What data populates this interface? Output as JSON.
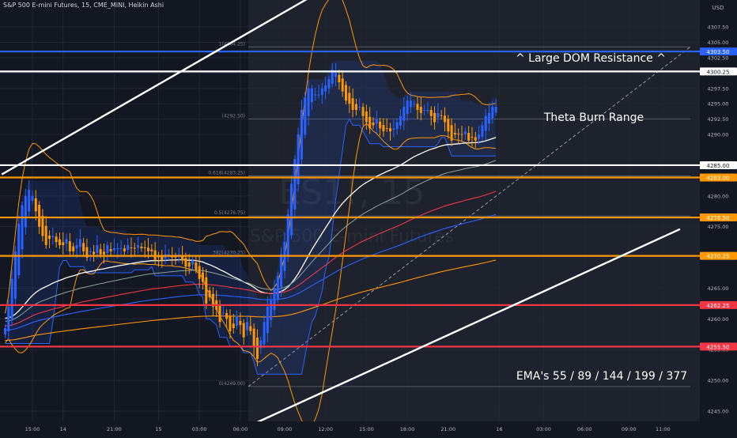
{
  "header": {
    "title": "S&P 500 E-mini Futures, 15, CME_MINI, Heikin Ashi",
    "currency": "USD"
  },
  "watermark": {
    "symbol": "ES1!, 15",
    "name": "S&P 500 E-mini Futures"
  },
  "colors": {
    "background": "#131722",
    "shade": "#1e222d",
    "up": "#2962ff",
    "down": "#ff9800",
    "level_blue": "#2962ff",
    "level_white": "#ffffff",
    "level_orange": "#ff9800",
    "level_red": "#f23645"
  },
  "annotations": {
    "dom_resistance": "^ Large DOM Resistance ^",
    "theta": "Theta Burn Range",
    "emas": "EMA's 55 / 89 / 144 / 199 / 377"
  },
  "chart_data": {
    "type": "candlestick",
    "title": "S&P 500 E-mini Futures, 15, CME_MINI, Heikin Ashi",
    "ylim": [
      4243,
      4310
    ],
    "y_ticks": [
      4245.0,
      4250.0,
      4255.0,
      4260.0,
      4265.0,
      4270.0,
      4275.0,
      4280.0,
      4285.0,
      4290.0,
      4292.5,
      4295.0,
      4297.5,
      4300.0,
      4302.5,
      4305.0,
      4307.5
    ],
    "y_tick_labels": [
      "4245.00",
      "4250.00",
      "4255.00",
      "4260.00",
      "4265.00",
      "4270.00",
      "4275.00",
      "4280.00",
      "4285.00",
      "4290.00",
      "4292.50",
      "4295.00",
      "4297.50",
      "4300.00",
      "4302.50",
      "4305.00",
      "4307.50"
    ],
    "x_ticks": [
      {
        "bar": 8,
        "label": "15:00"
      },
      {
        "bar": 17,
        "label": "14"
      },
      {
        "bar": 32,
        "label": "21:00"
      },
      {
        "bar": 45,
        "label": "15"
      },
      {
        "bar": 57,
        "label": "03:00"
      },
      {
        "bar": 69,
        "label": "06:00"
      },
      {
        "bar": 82,
        "label": "09:00"
      },
      {
        "bar": 94,
        "label": "12:00"
      },
      {
        "bar": 106,
        "label": "15:00"
      },
      {
        "bar": 118,
        "label": "18:00"
      },
      {
        "bar": 130,
        "label": "21:00"
      },
      {
        "bar": 145,
        "label": "16"
      },
      {
        "bar": 158,
        "label": "03:00"
      },
      {
        "bar": 170,
        "label": "06:00"
      },
      {
        "bar": 183,
        "label": "09:00"
      },
      {
        "bar": 193,
        "label": "11:00"
      }
    ],
    "price_levels": [
      {
        "value": 4303.5,
        "label": "4303.50",
        "color": "#2962ff"
      },
      {
        "value": 4300.25,
        "label": "4300.25",
        "color": "#ffffff"
      },
      {
        "value": 4285.0,
        "label": "4285.00",
        "color": "#ffffff"
      },
      {
        "value": 4283.0,
        "label": "4283.00",
        "color": "#ff9800"
      },
      {
        "value": 4276.5,
        "label": "4276.50",
        "color": "#ff9800"
      },
      {
        "value": 4270.25,
        "label": "4270.25",
        "color": "#ff9800"
      },
      {
        "value": 4262.25,
        "label": "4262.25",
        "color": "#f23645"
      },
      {
        "value": 4255.5,
        "label": "4255.50",
        "color": "#f23645"
      }
    ],
    "fib_levels": [
      {
        "value": 4304.25,
        "label": "1(4304.25)"
      },
      {
        "value": 4292.5,
        "label": "(4292.50)"
      },
      {
        "value": 4283.25,
        "label": "0.618(4283.25)"
      },
      {
        "value": 4276.75,
        "label": "0.5(4276.75)"
      },
      {
        "value": 4270.25,
        "label": "382(4270.25)"
      },
      {
        "value": 4249.0,
        "label": "0(4249.00)"
      }
    ],
    "trend_lines": [
      {
        "from": [
          -1,
          4283.5
        ],
        "to": [
          145,
          4330
        ]
      },
      {
        "from": [
          74,
          4243.2
        ],
        "to": [
          198,
          4274.6
        ]
      }
    ],
    "closes": [
      4258.5,
      4262.0,
      4266.5,
      4271.0,
      4275.5,
      4278.5,
      4280.0,
      4281.0,
      4280.0,
      4277.5,
      4275.0,
      4273.5,
      4272.0,
      4273.0,
      4273.5,
      4272.5,
      4272.0,
      4272.0,
      4273.0,
      4271.0,
      4271.0,
      4272.0,
      4273.0,
      4271.0,
      4270.0,
      4271.0,
      4270.5,
      4272.0,
      4270.5,
      4270.5,
      4272.0,
      4271.0,
      4271.5,
      4271.5,
      4271.5,
      4271.0,
      4272.0,
      4271.5,
      4271.5,
      4272.0,
      4271.5,
      4271.5,
      4271.0,
      4271.0,
      4269.5,
      4270.0,
      4269.5,
      4270.5,
      4270.5,
      4270.0,
      4270.0,
      4270.5,
      4269.5,
      4268.5,
      4268.5,
      4269.5,
      4268.0,
      4266.5,
      4266.0,
      4262.5,
      4263.5,
      4262.0,
      4261.5,
      4259.5,
      4261.0,
      4260.0,
      4258.0,
      4258.5,
      4260.5,
      4259.0,
      4257.0,
      4259.5,
      4258.0,
      4255.5,
      4253.5,
      4256.5,
      4259.5,
      4262.0,
      4263.0,
      4265.0,
      4267.0,
      4270.5,
      4272.5,
      4277.0,
      4282.0,
      4286.0,
      4290.0,
      4294.0,
      4296.0,
      4297.5,
      4297.5,
      4296.5,
      4296.5,
      4297.5,
      4298.0,
      4299.0,
      4300.5,
      4300.0,
      4298.5,
      4297.0,
      4295.5,
      4295.0,
      4294.0,
      4294.0,
      4294.5,
      4293.0,
      4292.0,
      4291.0,
      4291.5,
      4292.5,
      4291.0,
      4290.5,
      4291.0,
      4290.5,
      4291.0,
      4292.0,
      4293.0,
      4294.5,
      4295.5,
      4295.5,
      4295.0,
      4294.0,
      4293.5,
      4294.0,
      4294.0,
      4293.0,
      4292.0,
      4293.5,
      4293.0,
      4292.0,
      4290.5,
      4289.0,
      4290.0,
      4290.0,
      4290.0,
      4290.5,
      4289.0,
      4289.5,
      4289.0,
      4290.0,
      4291.5,
      4293.0,
      4293.5,
      4294.5,
      4294.5
    ]
  }
}
